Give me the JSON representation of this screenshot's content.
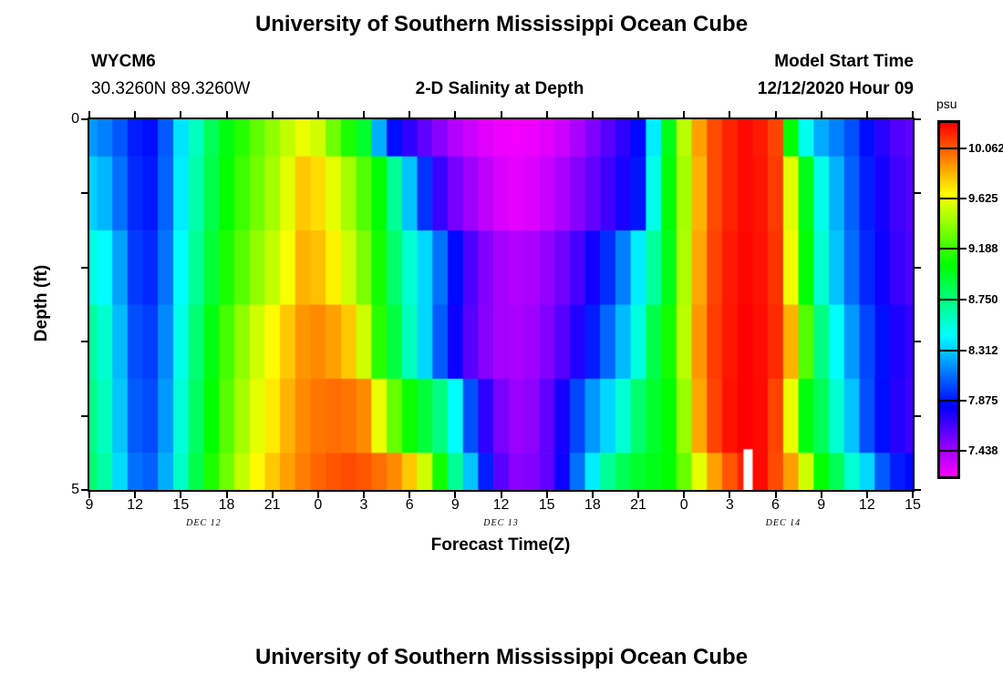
{
  "header": {
    "title": "University of Southern Mississippi Ocean Cube",
    "station_id": "WYCM6",
    "coordinates": "30.3260N 89.3260W",
    "plot_title": "2-D Salinity at Depth",
    "model_start_label": "Model Start Time",
    "model_start_value": "12/12/2020 Hour 09"
  },
  "footer": {
    "title": "University of Southern Mississippi Ocean Cube"
  },
  "chart_data": {
    "type": "heatmap",
    "title": "2-D Salinity at Depth",
    "xlabel": "Forecast Time(Z)",
    "ylabel": "Depth (ft)",
    "grid": false,
    "x_axis": {
      "tick_labels": [
        "9",
        "12",
        "15",
        "18",
        "21",
        "0",
        "3",
        "6",
        "9",
        "12",
        "15",
        "18",
        "21",
        "0",
        "3",
        "6",
        "9",
        "12",
        "15"
      ],
      "tick_interval_hours": 3,
      "date_labels": [
        {
          "text": "DEC 12",
          "center_hour_index": 7.5
        },
        {
          "text": "DEC 13",
          "center_hour_index": 27
        },
        {
          "text": "DEC 14",
          "center_hour_index": 45.5
        }
      ]
    },
    "y_axis": {
      "min": 0,
      "max": 5,
      "tick_step": 1,
      "labeled_ticks": [
        {
          "label": "0",
          "depth": 0
        },
        {
          "label": "5",
          "depth": 5
        }
      ]
    },
    "colorbar": {
      "label": "psu",
      "vmin": 7.219,
      "vmax": 10.281,
      "tick_values": [
        10.062,
        9.625,
        9.188,
        8.75,
        8.312,
        7.875,
        7.438
      ],
      "tick_labels": [
        "10.062",
        "9.625",
        "9.188",
        "8.750",
        "8.312",
        "7.875",
        "7.438"
      ],
      "colormap": "rainbow magenta(low) to red(high)"
    },
    "hours_per_column": 1,
    "series": [
      {
        "depth_ft": 0,
        "values": [
          8.2,
          8.14,
          8.04,
          7.9,
          7.86,
          8.05,
          8.38,
          8.6,
          8.85,
          9.02,
          9.15,
          9.28,
          9.4,
          9.52,
          9.62,
          9.55,
          9.32,
          9.12,
          8.95,
          8.25,
          7.86,
          7.72,
          7.6,
          7.5,
          7.4,
          7.34,
          7.29,
          7.26,
          7.25,
          7.26,
          7.29,
          7.34,
          7.42,
          7.52,
          7.62,
          7.72,
          7.85,
          8.4,
          9.0,
          9.5,
          9.9,
          10.1,
          10.2,
          10.26,
          10.22,
          10.12,
          9.05,
          8.48,
          8.24,
          8.14,
          8.02,
          7.86,
          7.73,
          7.64,
          7.6
        ]
      },
      {
        "depth_ft": 1,
        "values": [
          8.33,
          8.27,
          8.1,
          7.93,
          7.89,
          8.07,
          8.4,
          8.64,
          8.88,
          9.06,
          9.2,
          9.33,
          9.45,
          9.6,
          9.8,
          9.75,
          9.6,
          9.45,
          9.25,
          9.05,
          8.7,
          8.3,
          7.95,
          7.7,
          7.55,
          7.45,
          7.37,
          7.31,
          7.28,
          7.3,
          7.35,
          7.42,
          7.5,
          7.59,
          7.68,
          7.77,
          7.88,
          8.5,
          9.04,
          9.45,
          9.85,
          10.1,
          10.2,
          10.26,
          10.23,
          10.14,
          9.6,
          9.0,
          8.5,
          8.26,
          8.06,
          7.9,
          7.78,
          7.68,
          7.63
        ]
      },
      {
        "depth_ft": 2,
        "values": [
          8.52,
          8.44,
          8.22,
          7.97,
          7.93,
          8.11,
          8.45,
          8.7,
          8.93,
          9.11,
          9.26,
          9.4,
          9.52,
          9.65,
          9.85,
          9.82,
          9.7,
          9.55,
          9.35,
          9.1,
          8.8,
          8.55,
          8.35,
          8.1,
          7.85,
          7.65,
          7.52,
          7.44,
          7.4,
          7.42,
          7.48,
          7.56,
          7.66,
          7.79,
          7.94,
          8.14,
          8.4,
          8.68,
          9.0,
          9.47,
          9.88,
          10.12,
          10.22,
          10.27,
          10.24,
          10.16,
          9.64,
          9.05,
          8.55,
          8.3,
          8.09,
          7.92,
          7.8,
          7.7,
          7.65
        ]
      },
      {
        "depth_ft": 3,
        "values": [
          8.68,
          8.56,
          8.28,
          8.02,
          7.98,
          8.16,
          8.5,
          8.78,
          9.02,
          9.22,
          9.4,
          9.55,
          9.68,
          9.8,
          9.92,
          9.95,
          9.9,
          9.8,
          9.55,
          9.15,
          8.9,
          8.6,
          8.35,
          8.05,
          7.8,
          7.62,
          7.5,
          7.44,
          7.42,
          7.45,
          7.52,
          7.62,
          7.75,
          7.9,
          8.08,
          8.28,
          8.52,
          8.88,
          9.1,
          9.5,
          9.92,
          10.14,
          10.23,
          10.28,
          10.25,
          10.18,
          9.85,
          9.25,
          8.75,
          8.45,
          8.2,
          8.0,
          7.87,
          7.76,
          7.71
        ]
      },
      {
        "depth_ft": 4,
        "values": [
          8.74,
          8.6,
          8.31,
          8.05,
          8.01,
          8.2,
          8.54,
          8.82,
          9.06,
          9.26,
          9.45,
          9.6,
          9.72,
          9.85,
          9.95,
          10.0,
          10.02,
          10.0,
          9.95,
          9.62,
          9.3,
          9.08,
          8.92,
          8.75,
          8.45,
          8.02,
          7.72,
          7.54,
          7.46,
          7.49,
          7.6,
          7.78,
          8.0,
          8.2,
          8.35,
          8.55,
          8.8,
          8.95,
          9.05,
          9.42,
          9.88,
          10.12,
          10.24,
          10.28,
          10.26,
          10.12,
          9.62,
          9.02,
          8.85,
          8.55,
          8.3,
          8.02,
          7.86,
          7.74,
          7.69
        ]
      },
      {
        "depth_ft": 5,
        "values": [
          8.8,
          8.66,
          8.36,
          8.1,
          8.06,
          8.25,
          8.58,
          8.88,
          9.12,
          9.32,
          9.52,
          9.68,
          9.8,
          9.9,
          9.98,
          10.04,
          10.08,
          10.1,
          10.08,
          10.02,
          9.95,
          9.8,
          9.55,
          9.1,
          8.7,
          8.3,
          7.9,
          7.62,
          7.5,
          7.52,
          7.6,
          7.8,
          8.1,
          8.4,
          8.7,
          8.85,
          8.95,
          9.0,
          9.05,
          9.3,
          9.6,
          9.9,
          10.08,
          10.2,
          10.26,
          10.1,
          9.9,
          9.55,
          9.05,
          8.85,
          8.55,
          8.35,
          8.05,
          7.9,
          7.85
        ]
      }
    ],
    "missing_data": {
      "hour_index": 43.2,
      "depth_ft_from": 4.45,
      "depth_ft_to": 5
    }
  }
}
